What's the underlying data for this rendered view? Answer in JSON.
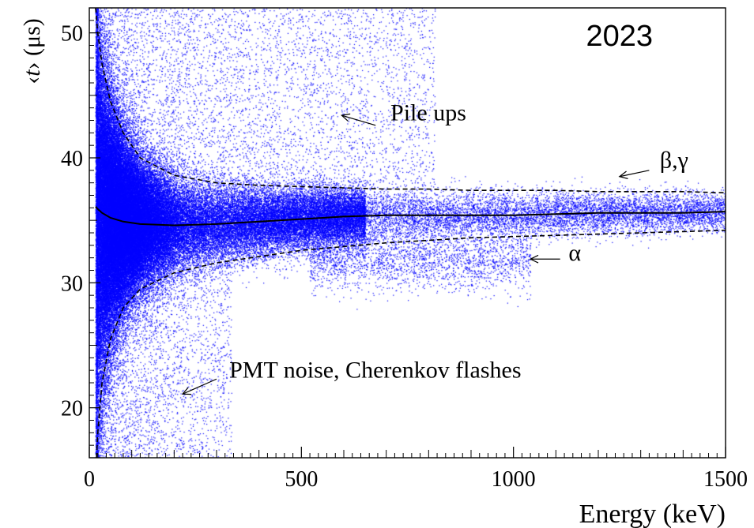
{
  "chart_data": {
    "type": "scatter",
    "title": "",
    "year_label": "2023",
    "xlabel": "Energy (keV)",
    "ylabel_open": "‹",
    "ylabel_var": "t",
    "ylabel_close": "›",
    "ylabel_unit": "(μs)",
    "xlim": [
      0,
      1500
    ],
    "ylim": [
      16,
      52
    ],
    "x_ticks": [
      0,
      500,
      1000,
      1500
    ],
    "y_ticks": [
      20,
      30,
      40,
      50
    ],
    "x_tick_labels": [
      "0",
      "500",
      "1000",
      "1500"
    ],
    "y_tick_labels": [
      "20",
      "30",
      "40",
      "50"
    ],
    "grid": false,
    "point_color": "#0000ff",
    "series": [
      {
        "role": "mean",
        "style": "solid",
        "x": [
          15,
          20,
          30,
          50,
          80,
          120,
          200,
          300,
          400,
          500,
          600,
          700,
          800,
          900,
          1000,
          1100,
          1200,
          1300,
          1400,
          1500
        ],
        "y": [
          36.1,
          35.9,
          35.6,
          35.2,
          34.9,
          34.7,
          34.6,
          34.7,
          34.9,
          35.1,
          35.3,
          35.4,
          35.4,
          35.4,
          35.4,
          35.5,
          35.6,
          35.6,
          35.6,
          35.7
        ]
      },
      {
        "role": "upper-bound",
        "style": "dashed",
        "x": [
          15,
          20,
          30,
          50,
          80,
          120,
          200,
          300,
          400,
          500,
          600,
          700,
          800,
          900,
          1000,
          1100,
          1200,
          1300,
          1400,
          1500
        ],
        "y": [
          52.0,
          50.0,
          47.5,
          44.5,
          42.0,
          40.0,
          38.6,
          38.0,
          37.8,
          37.7,
          37.6,
          37.5,
          37.5,
          37.4,
          37.4,
          37.4,
          37.3,
          37.3,
          37.3,
          37.2
        ]
      },
      {
        "role": "lower-bound",
        "style": "dashed",
        "x": [
          17,
          20,
          30,
          50,
          80,
          120,
          200,
          300,
          400,
          500,
          600,
          700,
          800,
          900,
          1000,
          1100,
          1200,
          1300,
          1400,
          1500
        ],
        "y": [
          16.0,
          18.0,
          22.0,
          25.5,
          28.0,
          29.5,
          30.8,
          31.6,
          32.1,
          32.6,
          32.9,
          33.2,
          33.4,
          33.6,
          33.7,
          33.8,
          33.9,
          34.0,
          34.1,
          34.2
        ]
      }
    ],
    "annotations": [
      {
        "text": "Pile ups",
        "x": 710,
        "y": 43.0,
        "arrow_from": [
          675,
          42.6
        ],
        "arrow_to": [
          595,
          43.4
        ]
      },
      {
        "text": "β,γ",
        "x": 1345,
        "y": 39.2,
        "arrow_from": [
          1320,
          39.0
        ],
        "arrow_to": [
          1250,
          38.5
        ]
      },
      {
        "text": "α",
        "x": 1130,
        "y": 31.8,
        "arrow_from": [
          1110,
          31.9
        ],
        "arrow_to": [
          1040,
          31.9
        ]
      },
      {
        "text": "PMT noise, Cherenkov flashes",
        "x": 330,
        "y": 22.4,
        "arrow_from": [
          300,
          22.3
        ],
        "arrow_to": [
          220,
          21.1
        ]
      }
    ]
  }
}
